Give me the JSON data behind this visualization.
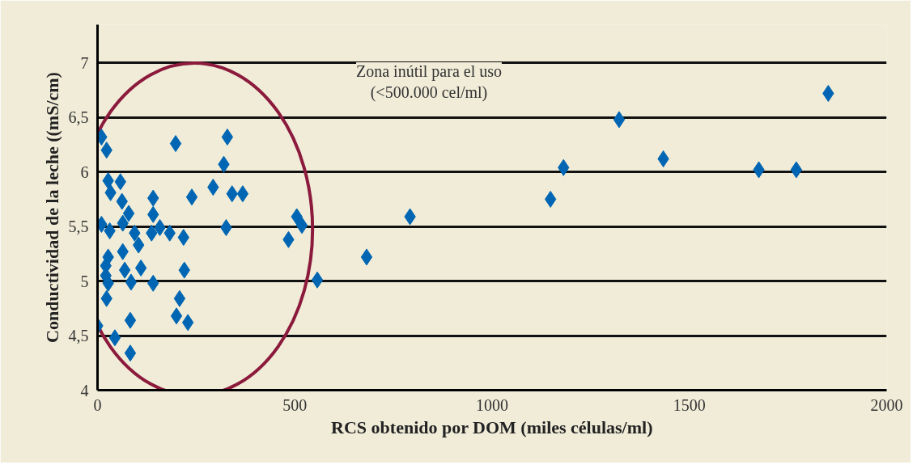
{
  "chart_data": {
    "type": "scatter",
    "xlabel": "RCS obtenido por DOM (miles células/ml)",
    "ylabel": "Conductividad de la leche ((mS/cm)",
    "annotations": [
      "Zona inútil para el uso\n(<500.000 cel/ml)"
    ],
    "xlim": [
      0,
      2000
    ],
    "xticks": [
      0,
      500,
      1000,
      1500,
      2000
    ],
    "ylim": [
      4,
      7.35
    ],
    "yticks": [
      4,
      {
        "value": 4.5,
        "label": "4,5"
      },
      5,
      {
        "value": 5.5,
        "label": "5,5"
      },
      6,
      {
        "value": 6.5,
        "label": "6,5"
      },
      7
    ],
    "grid": "y",
    "marker": "diamond",
    "series": [
      {
        "color": "#0066b3",
        "x": [
          1852,
          1322,
          1434,
          1676,
          1771,
          1181,
          1148,
          792,
          682,
          557,
          505,
          518,
          484,
          329,
          320,
          293,
          341,
          368,
          326,
          198,
          239,
          10,
          23,
          27,
          58,
          33,
          62,
          141,
          79,
          64,
          141,
          10,
          31,
          94,
          137,
          158,
          183,
          218,
          104,
          64,
          27,
          21,
          69,
          110,
          220,
          21,
          85,
          141,
          27,
          23,
          208,
          83,
          200,
          229,
          0,
          44,
          83
        ],
        "values": [
          6.72,
          6.48,
          6.12,
          6.02,
          6.02,
          6.04,
          5.75,
          5.59,
          5.22,
          5.01,
          5.59,
          5.51,
          5.38,
          6.32,
          6.07,
          5.86,
          5.8,
          5.8,
          5.49,
          6.26,
          5.77,
          6.32,
          6.2,
          5.92,
          5.91,
          5.81,
          5.73,
          5.76,
          5.62,
          5.53,
          5.61,
          5.52,
          5.46,
          5.44,
          5.44,
          5.49,
          5.44,
          5.4,
          5.33,
          5.27,
          5.22,
          5.14,
          5.1,
          5.12,
          5.1,
          5.05,
          4.99,
          4.98,
          4.98,
          4.84,
          4.84,
          4.64,
          4.68,
          4.62,
          4.59,
          4.48,
          4.34
        ]
      }
    ]
  }
}
